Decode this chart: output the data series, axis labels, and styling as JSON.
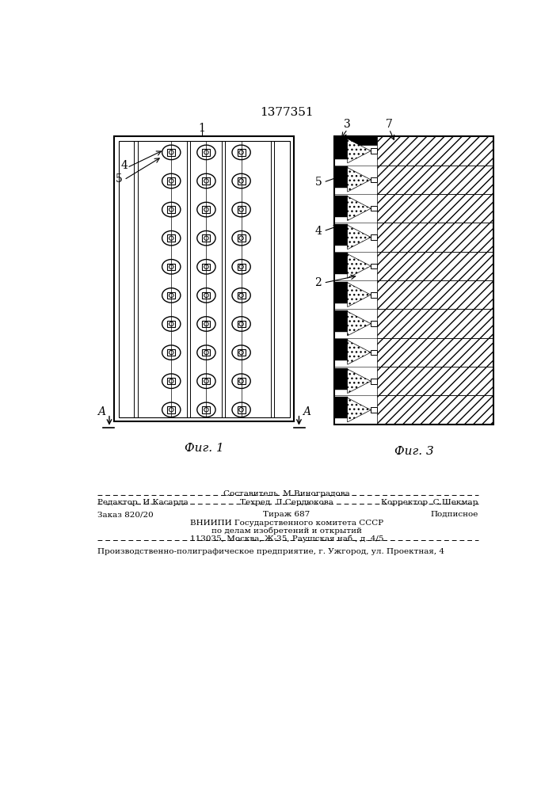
{
  "patent_number": "1377351",
  "fig1_label": "Фиг. 1",
  "fig3_label": "Фиг. 3",
  "bottom_sestavitel": "Составитель  М.Виноградова",
  "bottom_redaktor": "Редактор  И.Касарда",
  "bottom_tekhred": "Техред  Л.Сердюкова",
  "bottom_korrektor": "Корректор  С.Шекмар",
  "bottom_zakaz": "Заказ 820/20",
  "bottom_tirazh": "Тираж 687",
  "bottom_podpisnoe": "Подписное",
  "bottom_vnipi1": "ВНИИПИ Государственного комитета СССР",
  "bottom_vnipi2": "по делам изобретений и открытий",
  "bottom_vnipi3": "113035, Москва, Ж-35, Раушская наб., д. 4/5",
  "bottom_last": "Производственно-полиграфическое предприятие, г. Ужгород, ул. Проектная, 4",
  "bg_color": "#ffffff",
  "line_color": "#000000"
}
